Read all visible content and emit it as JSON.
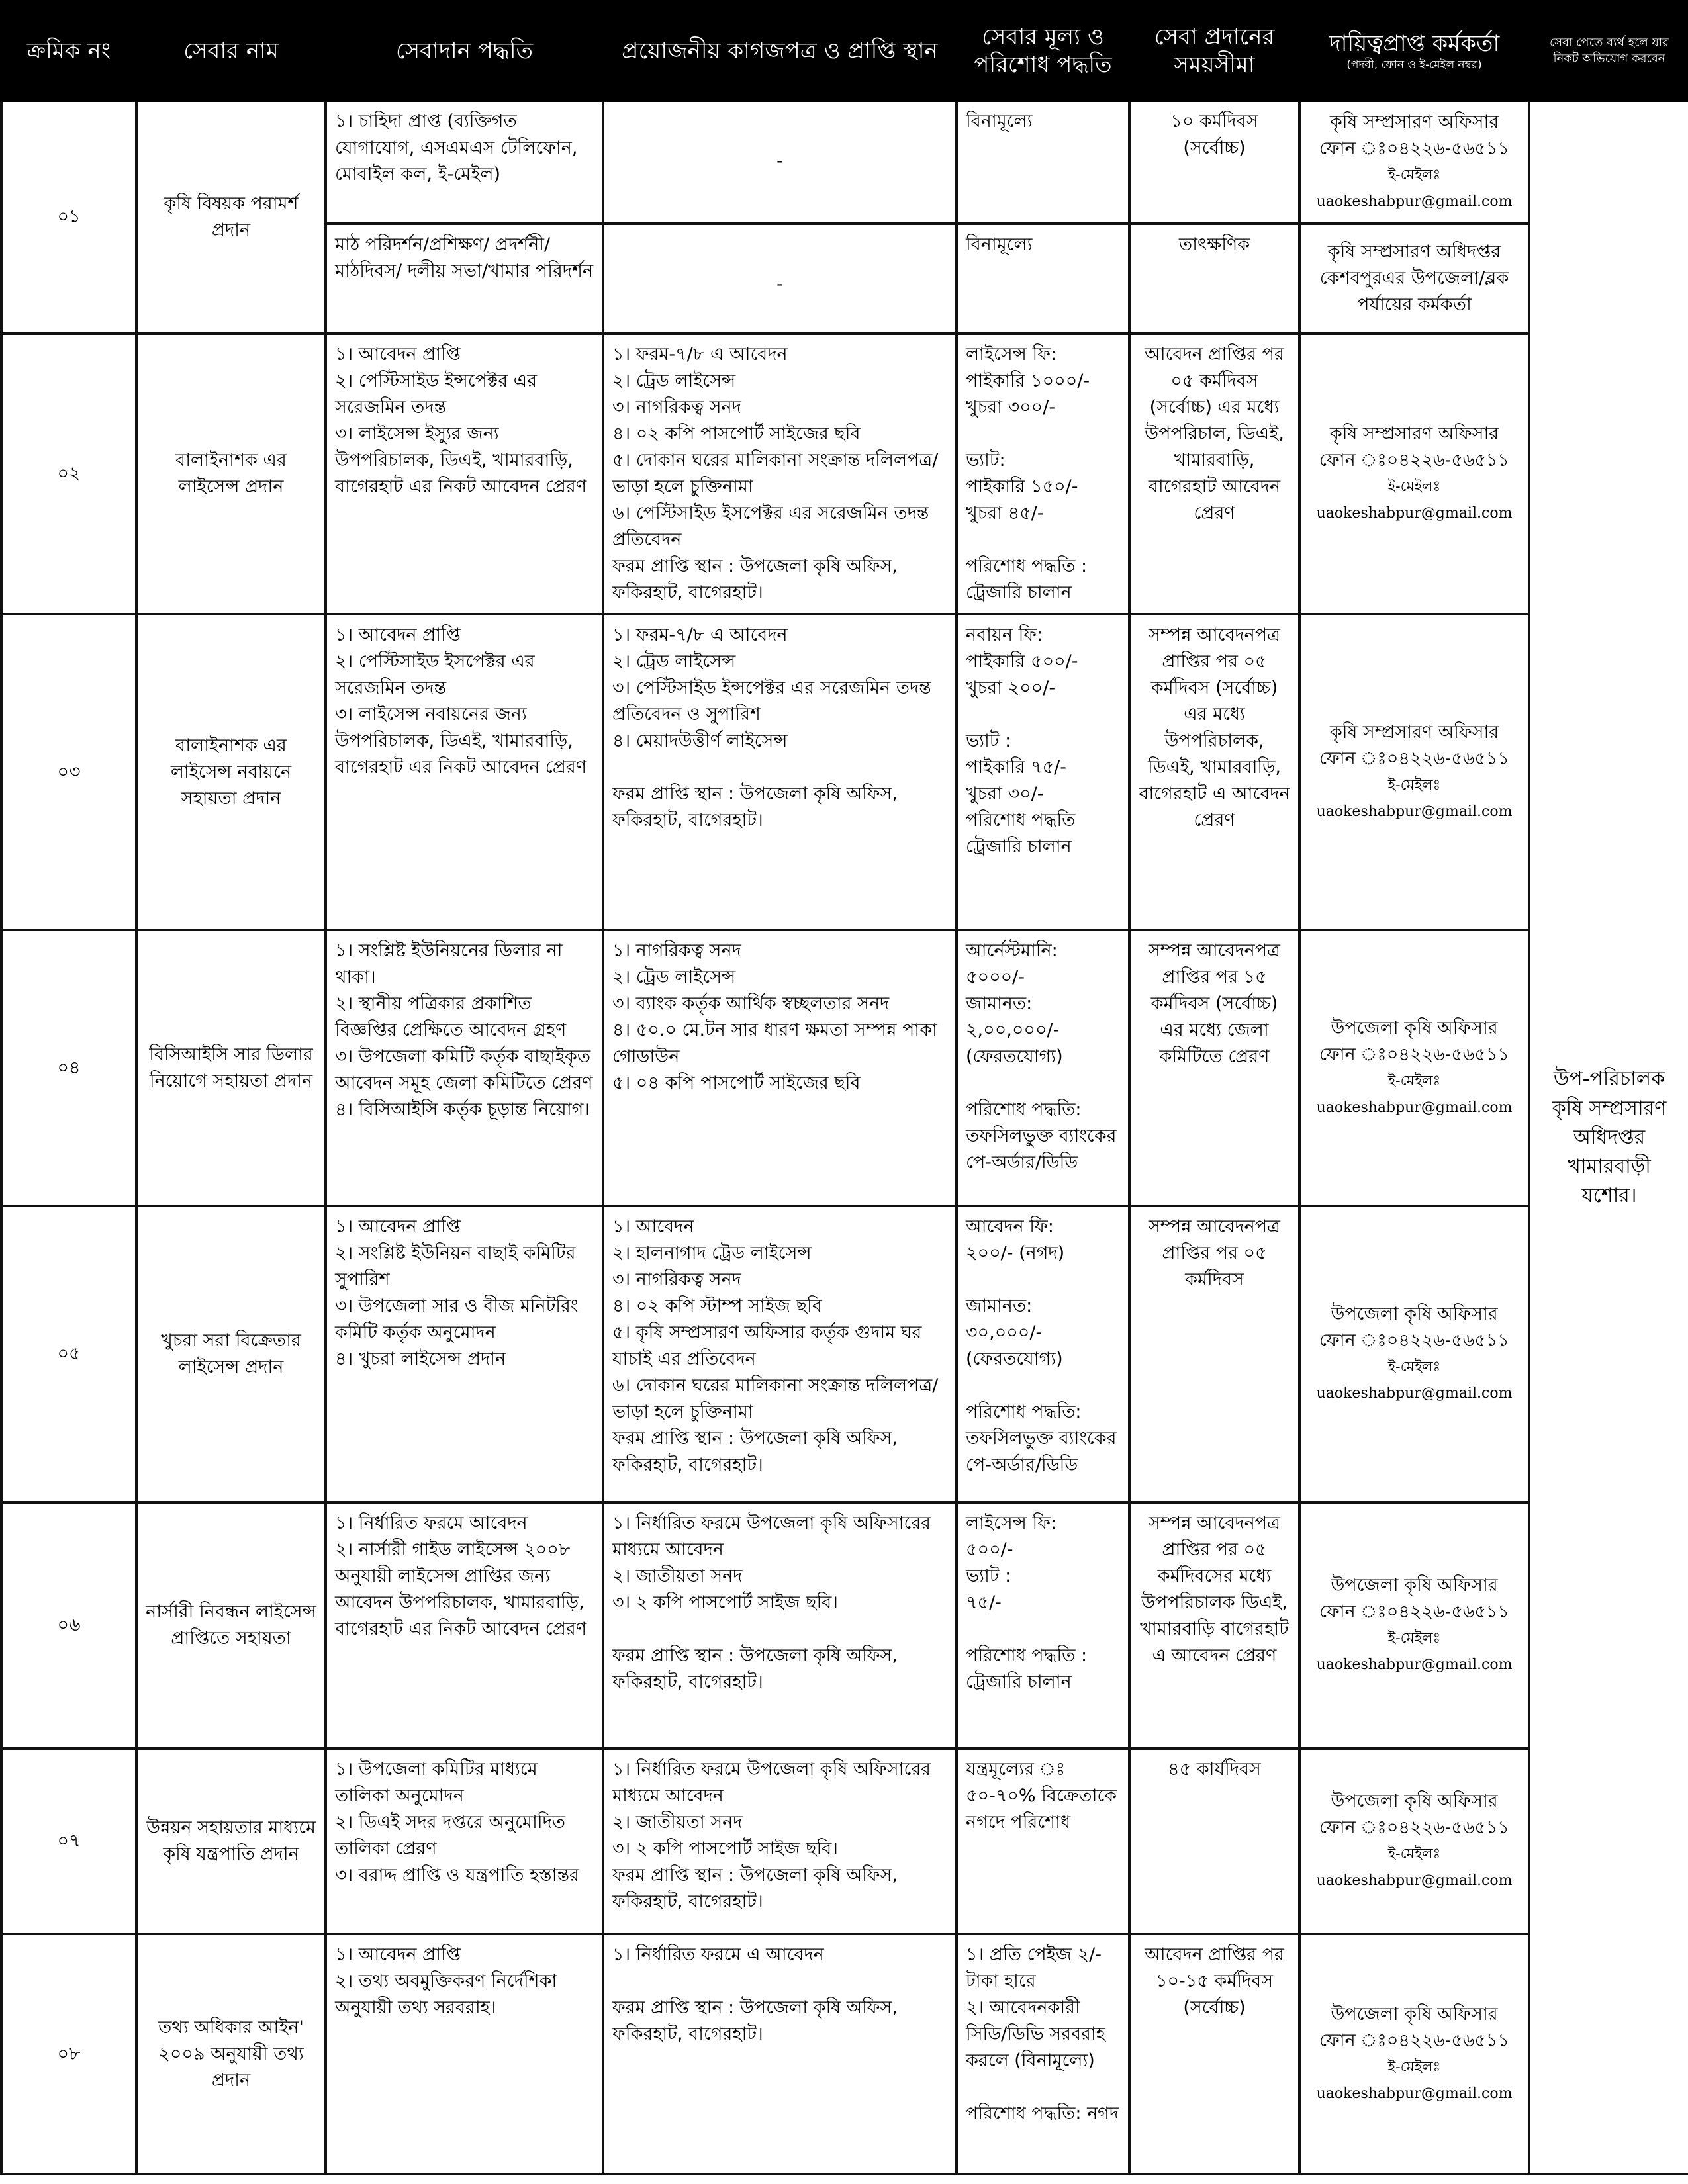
{
  "headers": {
    "serial": "ক্রমিক নং",
    "service_name": "সেবার নাম",
    "method": "সেবাদান পদ্ধতি",
    "documents": "প্রয়োজনীয় কাগজপত্র ও প্রাপ্তি স্থান",
    "fee": "সেবার মূল্য ও পরিশোধ পদ্ধতি",
    "time": "সেবা প্রদানের সময়সীমা",
    "officer": "দায়িত্বপ্রাপ্ত কর্মকর্তা",
    "officer_sub": "(পদবী, ফোন ও ই-মেইল নম্বর)",
    "complaint": "সেবা পেতে ব্যর্থ হলে যার নিকট অভিযোগ করবেন"
  },
  "complaint_authority": "উপ-পরিচালক কৃষি সম্প্রসারণ অধিদপ্তর খামারবাড়ী যশোর।",
  "rows": [
    {
      "no": "০১",
      "name": "কৃষি বিষয়ক পরামর্শ প্রদান",
      "subrows": [
        {
          "method": [
            "১। চাহিদা প্রাপ্ত (ব্যক্তিগত যোগাযোগ, এসএমএস টেলিফোন, মোবাইল কল, ই-মেইল)"
          ],
          "documents": [
            "-"
          ],
          "fee": [
            "বিনামূল্যে"
          ],
          "time": [
            "১০ কর্মদিবস (সর্বোচ্চ)"
          ],
          "officer": [
            "কৃষি সম্প্রসারণ অফিসার",
            "ফোন ঃ০৪২২৬-৫৬৫১১",
            "ই-মেইলঃ uaokeshabpur@gmail.com"
          ]
        },
        {
          "method": [
            "মাঠ পরিদর্শন/প্রশিক্ষণ/ প্রদর্শনী/মাঠদিবস/ দলীয় সভা/খামার পরিদর্শন"
          ],
          "documents": [
            "-"
          ],
          "fee": [
            "বিনামূল্যে"
          ],
          "time": [
            "তাৎক্ষণিক"
          ],
          "officer": [
            "কৃষি সম্প্রসারণ অধিদপ্তর কেশবপুরএর উপজেলা/ব্লক পর্যায়ের কর্মকর্তা"
          ]
        }
      ]
    },
    {
      "no": "০২",
      "name": "বালাইনাশক এর লাইসেন্স প্রদান",
      "subrows": [
        {
          "method": [
            "১। আবেদন প্রাপ্তি",
            "২। পেস্টিসাইড ইন্সপেক্টর এর সরেজমিন তদন্ত",
            "৩। লাইসেন্স ইস্যুর জন্য উপপরিচালক, ডিএই, খামারবাড়ি, বাগেরহাট এর নিকট আবেদন প্রেরণ"
          ],
          "documents": [
            "১। ফরম-৭/৮ এ আবেদন",
            "২। ট্রেড লাইসেন্স",
            "৩। নাগরিকত্ব সনদ",
            "৪। ০২ কপি পাসপোর্ট সাইজের ছবি",
            "৫। দোকান ঘরের মালিকানা সংক্রান্ত দলিলপত্র/ভাড়া হলে চুক্তিনামা",
            "৬। পেস্টিসাইড ইসপেক্টর এর সরেজমিন তদন্ত প্রতিবেদন",
            "ফরম প্রাপ্তি স্থান : উপজেলা কৃষি অফিস, ফকিরহাট, বাগেরহাট।"
          ],
          "fee": [
            "লাইসেন্স ফি:",
            "পাইকারি ১০০০/-",
            "খুচরা ৩০০/-",
            "",
            "ভ্যাট:",
            "পাইকারি ১৫০/-",
            "খুচরা ৪৫/-",
            "",
            "পরিশোধ পদ্ধতি :",
            "ট্রেজারি চালান"
          ],
          "time": [
            "আবেদন প্রাপ্তির পর ০৫ কর্মদিবস (সর্বোচ্চ) এর মধ্যে উপপরিচাল, ডিএই, খামারবাড়ি, বাগেরহাট আবেদন প্রেরণ"
          ],
          "officer": [
            "কৃষি সম্প্রসারণ অফিসার",
            "ফোন ঃ০৪২২৬-৫৬৫১১",
            "ই-মেইলঃ uaokeshabpur@gmail.com"
          ]
        }
      ]
    },
    {
      "no": "০৩",
      "name": "বালাইনাশক এর লাইসেন্স নবায়নে সহায়তা প্রদান",
      "subrows": [
        {
          "method": [
            "১। আবেদন প্রাপ্তি",
            "২। পেস্টিসাইড ইসপেক্টর এর সরেজমিন তদন্ত",
            "৩। লাইসেন্স নবায়নের জন্য উপপরিচালক, ডিএই, খামারবাড়ি, বাগেরহাট এর নিকট আবেদন প্রেরণ"
          ],
          "documents": [
            "১। ফরম-৭/৮ এ আবেদন",
            "২। ট্রেড লাইসেন্স",
            "৩। পেস্টিসাইড ইন্সপেক্টর এর সরেজমিন তদন্ত প্রতিবেদন ও সুপারিশ",
            "৪। মেয়াদউত্তীর্ণ লাইসেন্স",
            "",
            "ফরম প্রাপ্তি স্থান : উপজেলা কৃষি অফিস, ফকিরহাট, বাগেরহাট।"
          ],
          "fee": [
            "নবায়ন ফি:",
            "পাইকারি ৫০০/-",
            "খুচরা ২০০/-",
            "",
            "ভ্যাট :",
            "পাইকারি ৭৫/-",
            "খুচরা ৩০/-",
            "পরিশোধ পদ্ধতি",
            "ট্রেজারি চালান"
          ],
          "time": [
            "সম্পন্ন আবেদনপত্র প্রাপ্তির পর ০৫ কর্মদিবস (সর্বোচ্চ) এর মধ্যে উপপরিচালক, ডিএই, খামারবাড়ি, বাগেরহাট এ আবেদন প্রেরণ"
          ],
          "officer": [
            "কৃষি সম্প্রসারণ অফিসার",
            "ফোন ঃ০৪২২৬-৫৬৫১১",
            "ই-মেইলঃ uaokeshabpur@gmail.com"
          ]
        }
      ]
    },
    {
      "no": "০৪",
      "name": "বিসিআইসি সার ডিলার নিয়োগে সহায়তা প্রদান",
      "subrows": [
        {
          "method": [
            "১। সংশ্লিষ্ট ইউনিয়নের ডিলার না থাকা।",
            "২। স্থানীয় পত্রিকার প্রকাশিত বিজ্ঞপ্তির প্রেক্ষিতে আবেদন গ্রহণ",
            "৩। উপজেলা কমিটি কর্তৃক বাছাইকৃত আবেদন সমূহ জেলা কমিটিতে প্রেরণ",
            "৪। বিসিআইসি কর্তৃক চূড়ান্ত নিয়োগ।"
          ],
          "documents": [
            "১। নাগরিকত্ব সনদ",
            "২। ট্রেড লাইসেন্স",
            "৩। ব্যাংক কর্তৃক আর্থিক স্বচ্ছলতার সনদ",
            "৪। ৫০.০ মে.টন সার ধারণ ক্ষমতা সম্পন্ন পাকা গোডাউন",
            "৫। ০৪ কপি পাসপোর্ট সাইজের ছবি"
          ],
          "fee": [
            "আর্নেস্টমানি:",
            "৫০০০/-",
            "জামানত:",
            "২,০০,০০০/-",
            "(ফেরতযোগ্য)",
            "",
            "পরিশোধ পদ্ধতি:",
            "তফসিলভুক্ত ব্যাংকের পে-অর্ডার/ডিডি"
          ],
          "time": [
            "সম্পন্ন আবেদনপত্র প্রাপ্তির পর ১৫ কর্মদিবস (সর্বোচ্চ) এর মধ্যে জেলা কমিটিতে প্রেরণ"
          ],
          "officer": [
            "উপজেলা কৃষি অফিসার",
            "ফোন ঃ০৪২২৬-৫৬৫১১",
            "ই-মেইলঃ uaokeshabpur@gmail.com"
          ]
        }
      ]
    },
    {
      "no": "০৫",
      "name": "খুচরা সরা বিক্রেতার লাইসেন্স প্রদান",
      "subrows": [
        {
          "method": [
            "১। আবেদন প্রাপ্তি",
            "২। সংশ্লিষ্ট ইউনিয়ন বাছাই কমিটির সুপারিশ",
            "৩। উপজেলা সার ও বীজ মনিটরিং কমিটি কর্তৃক অনুমোদন",
            "৪। খুচরা লাইসেন্স প্রদান"
          ],
          "documents": [
            "১। আবেদন",
            "২। হালনাগাদ ট্রেড লাইসেন্স",
            "৩। নাগরিকত্ব সনদ",
            "৪। ০২ কপি স্টাম্প সাইজ ছবি",
            "৫। কৃষি সম্প্রসারণ অফিসার কর্তৃক গুদাম ঘর যাচাই এর প্রতিবেদন",
            "৬। দোকান ঘরের মালিকানা সংক্রান্ত দলিলপত্র/ভাড়া হলে চুক্তিনামা",
            "ফরম প্রাপ্তি স্থান : উপজেলা কৃষি অফিস, ফকিরহাট, বাগেরহাট।"
          ],
          "fee": [
            "আবেদন ফি:",
            "২০০/- (নগদ)",
            "",
            "জামানত:",
            "৩০,০০০/-",
            "(ফেরতযোগ্য)",
            "",
            "পরিশোধ পদ্ধতি:",
            "তফসিলভুক্ত ব্যাংকের পে-অর্ডার/ডিডি"
          ],
          "time": [
            "সম্পন্ন আবেদনপত্র প্রাপ্তির পর ০৫ কর্মদিবস"
          ],
          "officer": [
            "উপজেলা কৃষি অফিসার",
            "ফোন ঃ০৪২২৬-৫৬৫১১",
            "ই-মেইলঃ uaokeshabpur@gmail.com"
          ]
        }
      ]
    },
    {
      "no": "০৬",
      "name": "নার্সারী নিবন্ধন লাইসেন্স প্রাপ্তিতে সহায়তা",
      "subrows": [
        {
          "method": [
            "১। নির্ধারিত ফরমে আবেদন",
            "২। নার্সারী গাইড লাইসেন্স ২০০৮ অনুযায়ী লাইসেন্স প্রাপ্তির জন্য আবেদন উপপরিচালক, খামারবাড়ি, বাগেরহাট এর নিকট আবেদন প্রেরণ"
          ],
          "documents": [
            "১। নির্ধারিত ফরমে উপজেলা কৃষি অফিসারের মাধ্যমে আবেদন",
            "২। জাতীয়তা সনদ",
            "৩। ২ কপি পাসপোর্ট সাইজ ছবি।",
            "",
            "ফরম প্রাপ্তি স্থান : উপজেলা কৃষি অফিস, ফকিরহাট, বাগেরহাট।"
          ],
          "fee": [
            "লাইসেন্স ফি:",
            "৫০০/-",
            "ভ্যাট :",
            "৭৫/-",
            "",
            "পরিশোধ পদ্ধতি :",
            "ট্রেজারি চালান"
          ],
          "time": [
            "সম্পন্ন আবেদনপত্র প্রাপ্তির পর ০৫ কর্মদিবসের মধ্যে উপপরিচালক ডিএই, খামারবাড়ি বাগেরহাট এ আবেদন প্রেরণ"
          ],
          "officer": [
            "উপজেলা কৃষি অফিসার",
            "ফোন ঃ০৪২২৬-৫৬৫১১",
            "ই-মেইলঃ uaokeshabpur@gmail.com"
          ]
        }
      ]
    },
    {
      "no": "০৭",
      "name": "উন্নয়ন সহায়তার মাধ্যমে কৃষি যন্ত্রপাতি প্রদান",
      "subrows": [
        {
          "method": [
            "১। উপজেলা কমিটির মাধ্যমে তালিকা অনুমোদন",
            "২। ডিএই সদর দপ্তরে অনুমোদিত তালিকা প্রেরণ",
            "৩। বরাদ্দ প্রাপ্তি ও যন্ত্রপাতি হস্তান্তর"
          ],
          "documents": [
            "১। নির্ধারিত ফরমে উপজেলা কৃষি অফিসারের মাধ্যমে আবেদন",
            "২। জাতীয়তা সনদ",
            "৩। ২ কপি পাসপোর্ট সাইজ ছবি।",
            "ফরম প্রাপ্তি স্থান : উপজেলা কৃষি অফিস, ফকিরহাট, বাগেরহাট।"
          ],
          "fee": [
            "যন্ত্রমূল্যের ঃ ৫০-৭০% বিক্রেতাকে নগদে পরিশোধ"
          ],
          "time": [
            "৪৫ কার্যদিবস"
          ],
          "officer": [
            "উপজেলা কৃষি অফিসার",
            "ফোন ঃ০৪২২৬-৫৬৫১১",
            "ই-মেইলঃ uaokeshabpur@gmail.com"
          ]
        }
      ]
    },
    {
      "no": "০৮",
      "name": "তথ্য অধিকার আইন' ২০০৯ অনুযায়ী তথ্য প্রদান",
      "subrows": [
        {
          "method": [
            "১। আবেদন প্রাপ্তি",
            "২। তথ্য অবমুক্তিকরণ নির্দেশিকা অনুযায়ী তথ্য সরবরাহ।"
          ],
          "documents": [
            "১। নির্ধারিত ফরমে এ আবেদন",
            "",
            "ফরম প্রাপ্তি স্থান : উপজেলা কৃষি অফিস, ফকিরহাট, বাগেরহাট।"
          ],
          "fee": [
            "১। প্রতি পেইজ ২/- টাকা হারে",
            "২। আবেদনকারী সিডি/ডিভি সরবরাহ করলে (বিনামূল্যে)",
            "",
            "পরিশোধ পদ্ধতি: নগদ"
          ],
          "time": [
            "আবেদন প্রাপ্তির পর ১০-১৫ কর্মদিবস (সর্বোচ্চ)"
          ],
          "officer": [
            "উপজেলা কৃষি অফিসার",
            "ফোন ঃ০৪২২৬-৫৬৫১১",
            "ই-মেইলঃ uaokeshabpur@gmail.com"
          ]
        }
      ]
    }
  ]
}
